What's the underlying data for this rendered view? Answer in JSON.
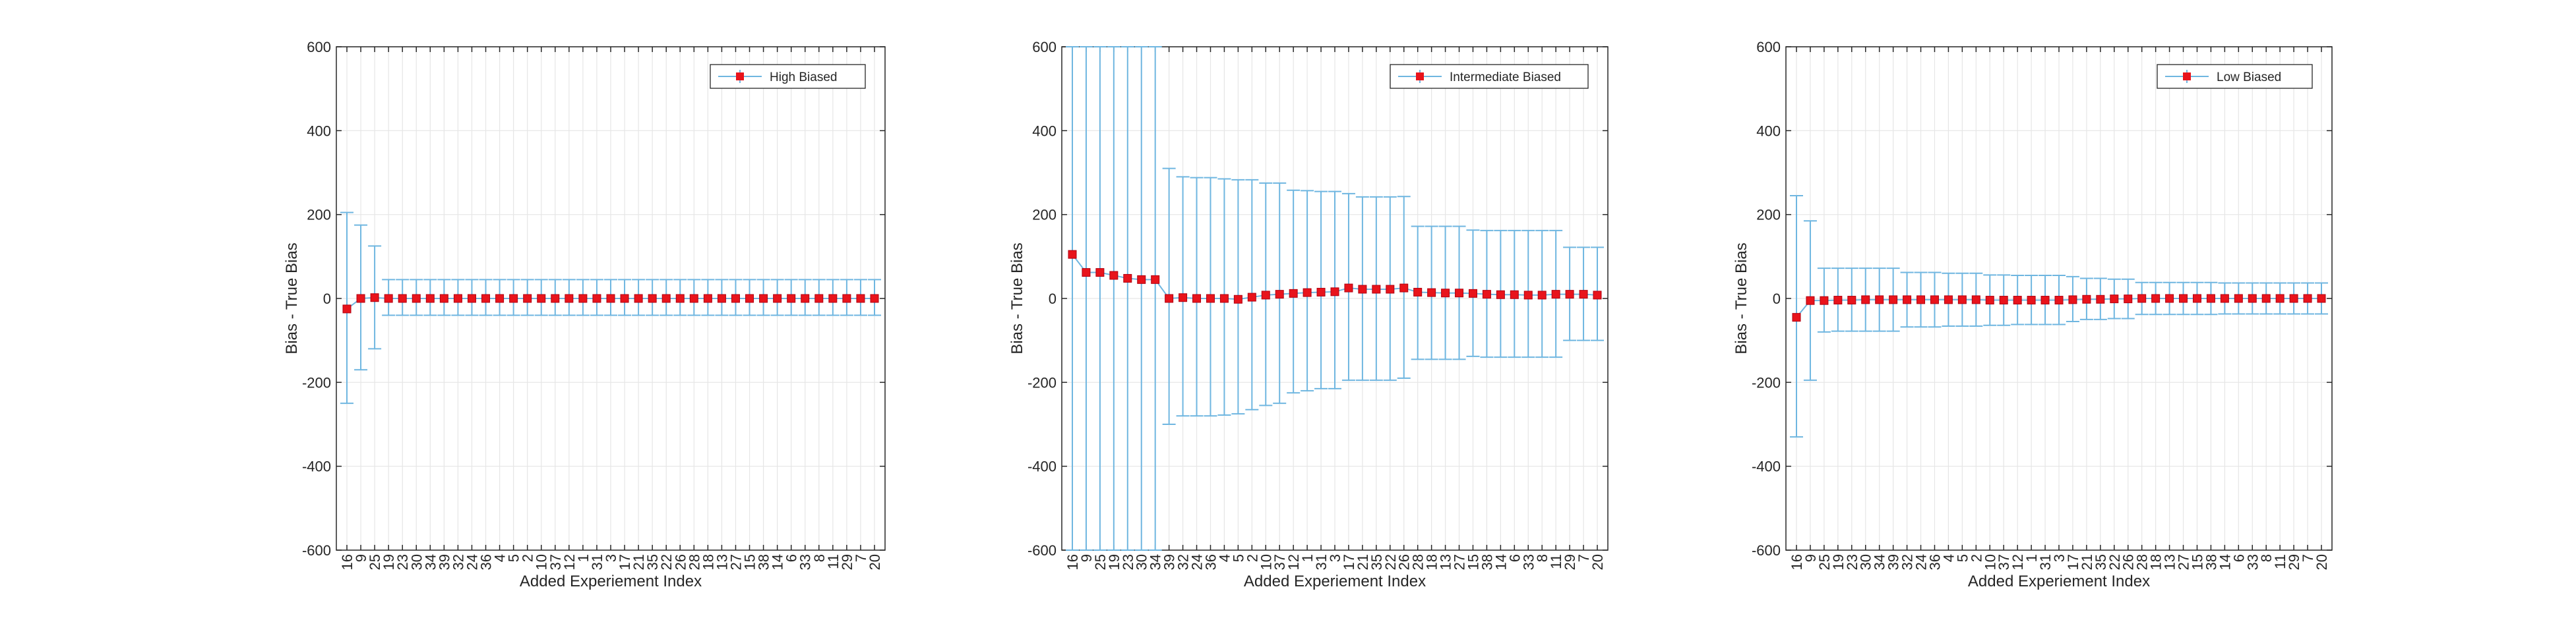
{
  "chart_data": [
    {
      "type": "errorbar",
      "xlabel": "Added Experiement Index",
      "ylabel": "Bias - True Bias",
      "ylim": [
        -600,
        600
      ],
      "yticks": [
        -600,
        -400,
        -200,
        0,
        200,
        400,
        600
      ],
      "grid": true,
      "legend_position": "top-right",
      "categories": [
        "16",
        "9",
        "25",
        "19",
        "23",
        "30",
        "34",
        "39",
        "32",
        "24",
        "36",
        "4",
        "5",
        "2",
        "10",
        "37",
        "12",
        "1",
        "31",
        "3",
        "17",
        "21",
        "35",
        "22",
        "26",
        "28",
        "18",
        "13",
        "27",
        "15",
        "38",
        "14",
        "6",
        "33",
        "8",
        "11",
        "29",
        "7",
        "20"
      ],
      "series": [
        {
          "name": "High Biased",
          "values": [
            -25,
            0,
            2,
            0,
            0,
            0,
            0,
            0,
            0,
            0,
            0,
            0,
            0,
            0,
            0,
            0,
            0,
            0,
            0,
            0,
            0,
            0,
            0,
            0,
            0,
            0,
            0,
            0,
            0,
            0,
            0,
            0,
            0,
            0,
            0,
            0,
            0,
            0,
            0
          ],
          "err_low": [
            -250,
            -170,
            -120,
            -40,
            -40,
            -40,
            -40,
            -40,
            -40,
            -40,
            -40,
            -40,
            -40,
            -40,
            -40,
            -40,
            -40,
            -40,
            -40,
            -40,
            -40,
            -40,
            -40,
            -40,
            -40,
            -40,
            -40,
            -40,
            -40,
            -40,
            -40,
            -40,
            -40,
            -40,
            -40,
            -40,
            -40,
            -40,
            -40
          ],
          "err_high": [
            205,
            175,
            125,
            45,
            45,
            45,
            45,
            45,
            45,
            45,
            45,
            45,
            45,
            45,
            45,
            45,
            45,
            45,
            45,
            45,
            45,
            45,
            45,
            45,
            45,
            45,
            45,
            45,
            45,
            45,
            45,
            45,
            45,
            45,
            45,
            45,
            45,
            45,
            45
          ],
          "marker_color": "#e8141c",
          "errorbar_color": "#6fb6e0"
        }
      ]
    },
    {
      "type": "errorbar",
      "xlabel": "Added Experiement Index",
      "ylabel": "Bias - True Bias",
      "ylim": [
        -600,
        600
      ],
      "yticks": [
        -600,
        -400,
        -200,
        0,
        200,
        400,
        600
      ],
      "grid": true,
      "legend_position": "top-right",
      "categories": [
        "16",
        "9",
        "25",
        "19",
        "23",
        "30",
        "34",
        "39",
        "32",
        "24",
        "36",
        "4",
        "5",
        "2",
        "10",
        "37",
        "12",
        "1",
        "31",
        "3",
        "17",
        "21",
        "35",
        "22",
        "26",
        "28",
        "18",
        "13",
        "27",
        "15",
        "38",
        "14",
        "6",
        "33",
        "8",
        "11",
        "29",
        "7",
        "20"
      ],
      "series": [
        {
          "name": "Intermediate Biased",
          "values": [
            105,
            62,
            62,
            55,
            48,
            45,
            45,
            0,
            2,
            0,
            0,
            0,
            -2,
            3,
            8,
            10,
            12,
            14,
            15,
            16,
            25,
            22,
            22,
            22,
            25,
            15,
            14,
            13,
            13,
            12,
            10,
            9,
            9,
            8,
            8,
            10,
            10,
            10,
            8
          ],
          "err_low": [
            -600,
            -600,
            -600,
            -600,
            -600,
            -600,
            -600,
            -300,
            -280,
            -280,
            -280,
            -278,
            -275,
            -265,
            -255,
            -250,
            -225,
            -220,
            -215,
            -215,
            -195,
            -195,
            -195,
            -195,
            -190,
            -145,
            -145,
            -145,
            -145,
            -138,
            -140,
            -140,
            -140,
            -140,
            -140,
            -140,
            -100,
            -100,
            -100
          ],
          "err_high": [
            600,
            600,
            600,
            600,
            600,
            600,
            600,
            310,
            290,
            288,
            288,
            285,
            283,
            283,
            275,
            275,
            258,
            257,
            255,
            255,
            250,
            242,
            242,
            242,
            243,
            172,
            172,
            172,
            172,
            163,
            162,
            162,
            162,
            162,
            162,
            162,
            122,
            122,
            122
          ],
          "marker_color": "#e8141c",
          "errorbar_color": "#6fb6e0"
        }
      ]
    },
    {
      "type": "errorbar",
      "xlabel": "Added Experiement Index",
      "ylabel": "Bias - True Bias",
      "ylim": [
        -600,
        600
      ],
      "yticks": [
        -600,
        -400,
        -200,
        0,
        200,
        400,
        600
      ],
      "grid": true,
      "legend_position": "top-right",
      "categories": [
        "16",
        "9",
        "25",
        "19",
        "23",
        "30",
        "34",
        "39",
        "32",
        "24",
        "36",
        "4",
        "5",
        "2",
        "10",
        "37",
        "12",
        "1",
        "31",
        "3",
        "17",
        "21",
        "35",
        "22",
        "26",
        "28",
        "18",
        "13",
        "27",
        "15",
        "38",
        "14",
        "6",
        "33",
        "8",
        "11",
        "29",
        "7",
        "20"
      ],
      "series": [
        {
          "name": "Low Biased",
          "values": [
            -45,
            -5,
            -5,
            -4,
            -4,
            -3,
            -3,
            -3,
            -3,
            -3,
            -3,
            -3,
            -3,
            -3,
            -4,
            -4,
            -4,
            -4,
            -4,
            -4,
            -3,
            -2,
            -2,
            -1,
            -1,
            0,
            0,
            0,
            0,
            0,
            0,
            0,
            0,
            0,
            0,
            0,
            0,
            0,
            0
          ],
          "err_low": [
            -330,
            -195,
            -80,
            -78,
            -78,
            -78,
            -78,
            -78,
            -68,
            -68,
            -68,
            -66,
            -66,
            -66,
            -64,
            -64,
            -62,
            -62,
            -62,
            -62,
            -55,
            -50,
            -50,
            -48,
            -48,
            -38,
            -38,
            -38,
            -38,
            -38,
            -38,
            -37,
            -37,
            -37,
            -37,
            -37,
            -37,
            -37,
            -37
          ],
          "err_high": [
            245,
            185,
            72,
            72,
            72,
            72,
            72,
            72,
            62,
            62,
            62,
            60,
            60,
            60,
            56,
            56,
            55,
            55,
            55,
            55,
            52,
            48,
            48,
            46,
            46,
            38,
            38,
            38,
            38,
            38,
            38,
            37,
            37,
            37,
            37,
            37,
            37,
            37,
            37
          ],
          "marker_color": "#e8141c",
          "errorbar_color": "#6fb6e0"
        }
      ]
    }
  ]
}
